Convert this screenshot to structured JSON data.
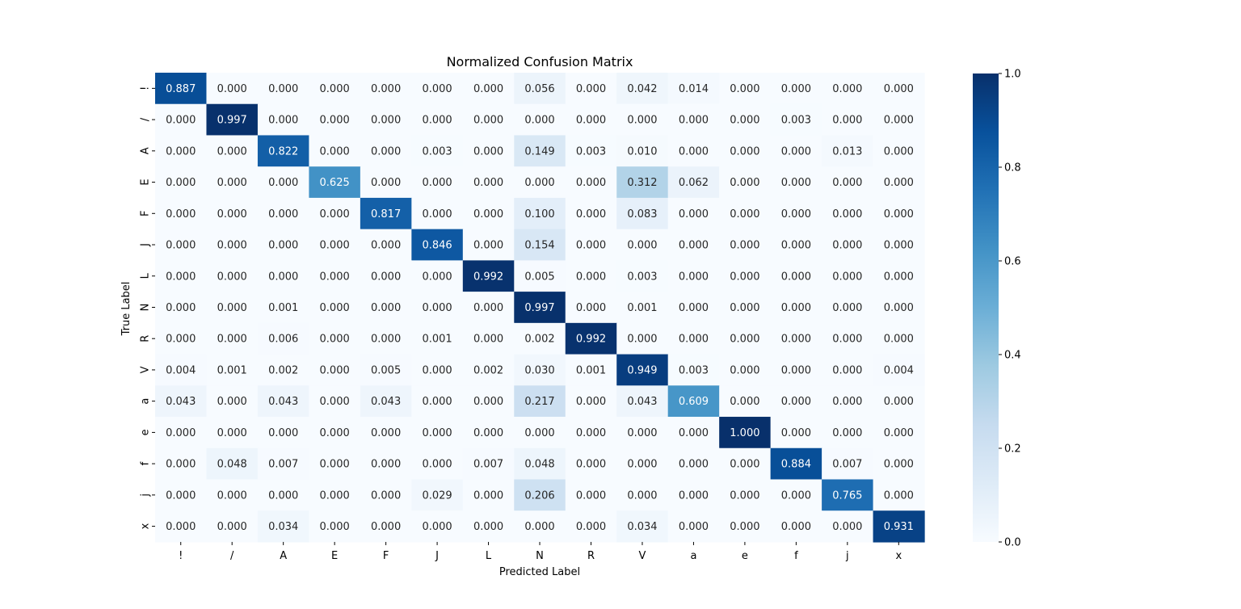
{
  "chart_data": {
    "type": "heatmap",
    "title": "Normalized Confusion Matrix",
    "xlabel": "Predicted Label",
    "ylabel": "True Label",
    "labels": [
      "!",
      "/",
      "A",
      "E",
      "F",
      "J",
      "L",
      "N",
      "R",
      "V",
      "a",
      "e",
      "f",
      "j",
      "x"
    ],
    "value_format": "3 decimals",
    "values": [
      [
        0.887,
        0.0,
        0.0,
        0.0,
        0.0,
        0.0,
        0.0,
        0.056,
        0.0,
        0.042,
        0.014,
        0.0,
        0.0,
        0.0,
        0.0
      ],
      [
        0.0,
        0.997,
        0.0,
        0.0,
        0.0,
        0.0,
        0.0,
        0.0,
        0.0,
        0.0,
        0.0,
        0.0,
        0.003,
        0.0,
        0.0
      ],
      [
        0.0,
        0.0,
        0.822,
        0.0,
        0.0,
        0.003,
        0.0,
        0.149,
        0.003,
        0.01,
        0.0,
        0.0,
        0.0,
        0.013,
        0.0
      ],
      [
        0.0,
        0.0,
        0.0,
        0.625,
        0.0,
        0.0,
        0.0,
        0.0,
        0.0,
        0.312,
        0.062,
        0.0,
        0.0,
        0.0,
        0.0
      ],
      [
        0.0,
        0.0,
        0.0,
        0.0,
        0.817,
        0.0,
        0.0,
        0.1,
        0.0,
        0.083,
        0.0,
        0.0,
        0.0,
        0.0,
        0.0
      ],
      [
        0.0,
        0.0,
        0.0,
        0.0,
        0.0,
        0.846,
        0.0,
        0.154,
        0.0,
        0.0,
        0.0,
        0.0,
        0.0,
        0.0,
        0.0
      ],
      [
        0.0,
        0.0,
        0.0,
        0.0,
        0.0,
        0.0,
        0.992,
        0.005,
        0.0,
        0.003,
        0.0,
        0.0,
        0.0,
        0.0,
        0.0
      ],
      [
        0.0,
        0.0,
        0.001,
        0.0,
        0.0,
        0.0,
        0.0,
        0.997,
        0.0,
        0.001,
        0.0,
        0.0,
        0.0,
        0.0,
        0.0
      ],
      [
        0.0,
        0.0,
        0.006,
        0.0,
        0.0,
        0.001,
        0.0,
        0.002,
        0.992,
        0.0,
        0.0,
        0.0,
        0.0,
        0.0,
        0.0
      ],
      [
        0.004,
        0.001,
        0.002,
        0.0,
        0.005,
        0.0,
        0.002,
        0.03,
        0.001,
        0.949,
        0.003,
        0.0,
        0.0,
        0.0,
        0.004
      ],
      [
        0.043,
        0.0,
        0.043,
        0.0,
        0.043,
        0.0,
        0.0,
        0.217,
        0.0,
        0.043,
        0.609,
        0.0,
        0.0,
        0.0,
        0.0
      ],
      [
        0.0,
        0.0,
        0.0,
        0.0,
        0.0,
        0.0,
        0.0,
        0.0,
        0.0,
        0.0,
        0.0,
        1.0,
        0.0,
        0.0,
        0.0
      ],
      [
        0.0,
        0.048,
        0.007,
        0.0,
        0.0,
        0.0,
        0.007,
        0.048,
        0.0,
        0.0,
        0.0,
        0.0,
        0.884,
        0.007,
        0.0
      ],
      [
        0.0,
        0.0,
        0.0,
        0.0,
        0.0,
        0.029,
        0.0,
        0.206,
        0.0,
        0.0,
        0.0,
        0.0,
        0.0,
        0.765,
        0.0
      ],
      [
        0.0,
        0.0,
        0.034,
        0.0,
        0.0,
        0.0,
        0.0,
        0.0,
        0.0,
        0.034,
        0.0,
        0.0,
        0.0,
        0.0,
        0.931
      ]
    ],
    "colormap": "Blues",
    "colorbar": {
      "range": [
        0.0,
        1.0
      ],
      "ticks": [
        "0.0",
        "0.2",
        "0.4",
        "0.6",
        "0.8",
        "1.0"
      ]
    },
    "text_colors": {
      "light": "#ffffff",
      "dark": "#262626"
    }
  }
}
